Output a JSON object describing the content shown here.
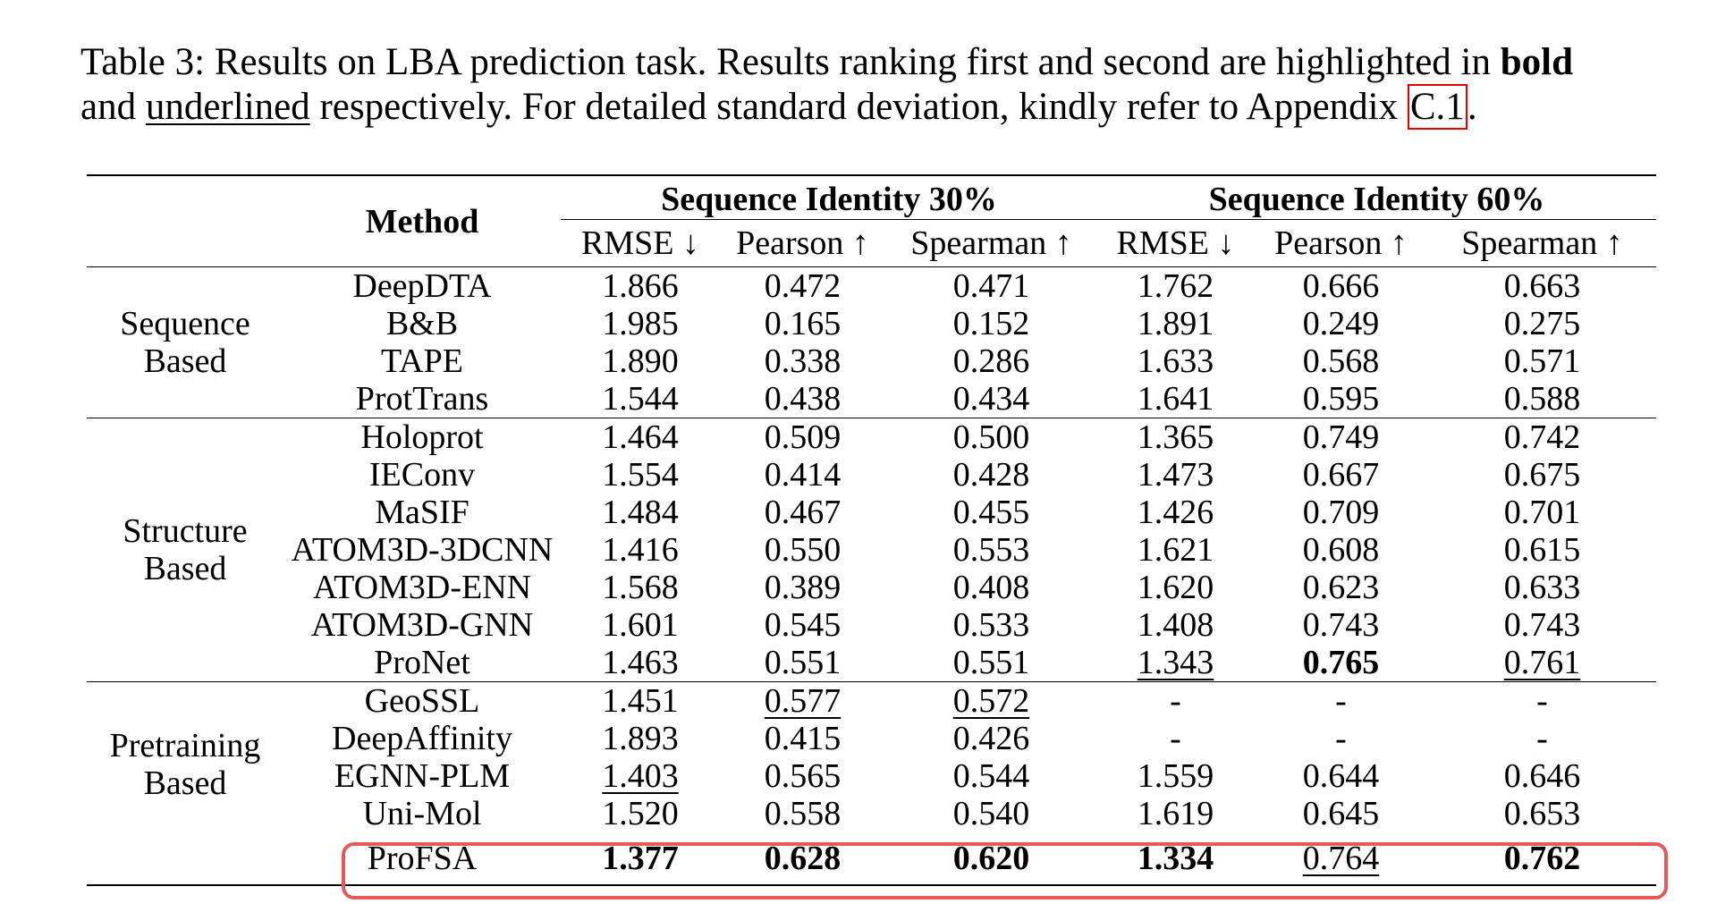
{
  "caption": {
    "prefix": "Table 3: Results on LBA prediction task. Results ranking first and second are highlighted in ",
    "bold_word": "bold",
    "line2_pre": "and ",
    "underlined_word": "underlined",
    "line2_mid": " respectively. For detailed standard deviation, kindly refer to Appendix ",
    "ref": "C.1",
    "end": "."
  },
  "table": {
    "method_header": "Method",
    "group_headers": [
      "Sequence Identity 30%",
      "Sequence Identity 60%"
    ],
    "metric_headers": [
      "RMSE ↓",
      "Pearson ↑",
      "Spearman ↑",
      "RMSE ↓",
      "Pearson ↑",
      "Spearman ↑"
    ],
    "categories": [
      {
        "label": "Sequence Based"
      },
      {
        "label": "Structure Based"
      },
      {
        "label": "Pretraining Based"
      }
    ],
    "rows": [
      {
        "method": "DeepDTA",
        "v": [
          "1.866",
          "0.472",
          "0.471",
          "1.762",
          "0.666",
          "0.663"
        ]
      },
      {
        "method": "B&B",
        "v": [
          "1.985",
          "0.165",
          "0.152",
          "1.891",
          "0.249",
          "0.275"
        ]
      },
      {
        "method": "TAPE",
        "v": [
          "1.890",
          "0.338",
          "0.286",
          "1.633",
          "0.568",
          "0.571"
        ]
      },
      {
        "method": "ProtTrans",
        "v": [
          "1.544",
          "0.438",
          "0.434",
          "1.641",
          "0.595",
          "0.588"
        ]
      },
      {
        "method": "Holoprot",
        "v": [
          "1.464",
          "0.509",
          "0.500",
          "1.365",
          "0.749",
          "0.742"
        ]
      },
      {
        "method": "IEConv",
        "v": [
          "1.554",
          "0.414",
          "0.428",
          "1.473",
          "0.667",
          "0.675"
        ]
      },
      {
        "method": "MaSIF",
        "v": [
          "1.484",
          "0.467",
          "0.455",
          "1.426",
          "0.709",
          "0.701"
        ]
      },
      {
        "method": "ATOM3D-3DCNN",
        "v": [
          "1.416",
          "0.550",
          "0.553",
          "1.621",
          "0.608",
          "0.615"
        ]
      },
      {
        "method": "ATOM3D-ENN",
        "v": [
          "1.568",
          "0.389",
          "0.408",
          "1.620",
          "0.623",
          "0.633"
        ]
      },
      {
        "method": "ATOM3D-GNN",
        "v": [
          "1.601",
          "0.545",
          "0.533",
          "1.408",
          "0.743",
          "0.743"
        ]
      },
      {
        "method": "ProNet",
        "v": [
          "1.463",
          "0.551",
          "0.551",
          "1.343",
          "0.765",
          "0.761"
        ]
      },
      {
        "method": "GeoSSL",
        "v": [
          "1.451",
          "0.577",
          "0.572",
          "-",
          "-",
          "-"
        ]
      },
      {
        "method": "DeepAffinity",
        "v": [
          "1.893",
          "0.415",
          "0.426",
          "-",
          "-",
          "-"
        ]
      },
      {
        "method": "EGNN-PLM",
        "v": [
          "1.403",
          "0.565",
          "0.544",
          "1.559",
          "0.644",
          "0.646"
        ]
      },
      {
        "method": "Uni-Mol",
        "v": [
          "1.520",
          "0.558",
          "0.540",
          "1.619",
          "0.645",
          "0.653"
        ]
      },
      {
        "method": "ProFSA",
        "v": [
          "1.377",
          "0.628",
          "0.620",
          "1.334",
          "0.764",
          "0.762"
        ]
      }
    ]
  },
  "colors": {
    "highlight_border": "#e45a5a",
    "ref_box": "#e00000"
  }
}
